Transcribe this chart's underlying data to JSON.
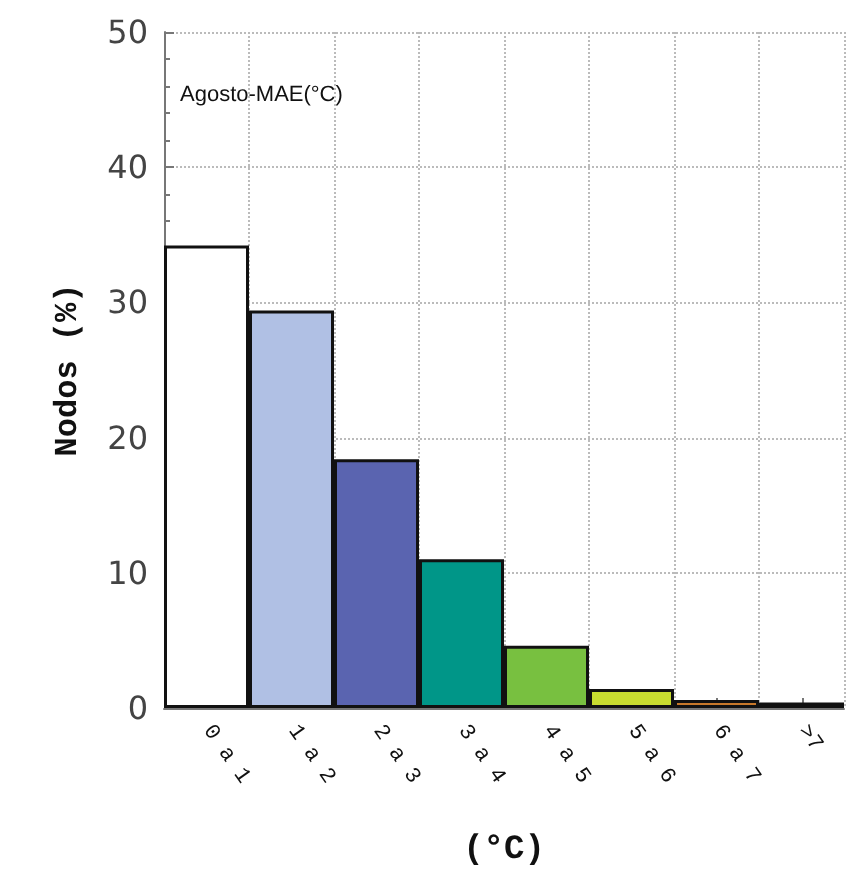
{
  "chart_data": {
    "type": "bar",
    "categories": [
      "0 a 1",
      "1 a 2",
      "2 a 3",
      "3 a 4",
      "4 a 5",
      "5 a 6",
      "6 a 7",
      ">7"
    ],
    "values": [
      34.2,
      29.4,
      18.4,
      11.0,
      4.6,
      1.4,
      0.6,
      0.4
    ],
    "colors": [
      "#ffffff",
      "#b0c0e4",
      "#5a64b0",
      "#009688",
      "#78c040",
      "#c8dc30",
      "#c8782a",
      "#9a1a1a"
    ],
    "xlabel": "(°C)",
    "ylabel": "Nodos (%)",
    "annotations": [
      "Agosto-MAE(°C)"
    ],
    "ylim": [
      0,
      50
    ],
    "yticks": [
      0,
      10,
      20,
      30,
      40,
      50
    ],
    "grid": true
  }
}
